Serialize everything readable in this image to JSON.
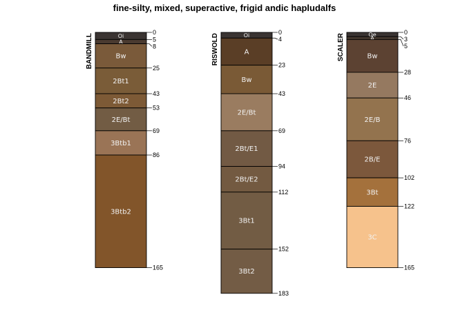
{
  "chart_data": {
    "type": "soil-profile-sketch",
    "title": "fine-silty, mixed, superactive, frigid andic hapludalfs",
    "depth_unit": "cm",
    "depth_range": [
      0,
      183
    ],
    "profiles": [
      {
        "name": "BANDMILL",
        "horizons": [
          {
            "name": "Oi",
            "top": 0,
            "bottom": 5,
            "color": "#3a3432"
          },
          {
            "name": "A",
            "top": 5,
            "bottom": 8,
            "color": "#4a3a30"
          },
          {
            "name": "Bw",
            "top": 8,
            "bottom": 25,
            "color": "#7a5a3a"
          },
          {
            "name": "2Bt1",
            "top": 25,
            "bottom": 43,
            "color": "#7a5c38"
          },
          {
            "name": "2Bt2",
            "top": 43,
            "bottom": 53,
            "color": "#7d5a36"
          },
          {
            "name": "2E/Bt",
            "top": 53,
            "bottom": 69,
            "color": "#725c44"
          },
          {
            "name": "3Btb1",
            "top": 69,
            "bottom": 86,
            "color": "#9a7456"
          },
          {
            "name": "3Btb2",
            "top": 86,
            "bottom": 165,
            "color": "#82552a"
          }
        ],
        "depth_labels": [
          0,
          5,
          8,
          25,
          43,
          53,
          69,
          86,
          165
        ]
      },
      {
        "name": "RISWOLD",
        "horizons": [
          {
            "name": "Oi",
            "top": 0,
            "bottom": 4,
            "color": "#3a3432"
          },
          {
            "name": "A",
            "top": 4,
            "bottom": 23,
            "color": "#5a3e26"
          },
          {
            "name": "Bw",
            "top": 23,
            "bottom": 43,
            "color": "#7a5a36"
          },
          {
            "name": "2E/Bt",
            "top": 43,
            "bottom": 69,
            "color": "#9a7c60"
          },
          {
            "name": "2Bt/E1",
            "top": 69,
            "bottom": 94,
            "color": "#725a44"
          },
          {
            "name": "2Bt/E2",
            "top": 94,
            "bottom": 112,
            "color": "#735a41"
          },
          {
            "name": "3Bt1",
            "top": 112,
            "bottom": 152,
            "color": "#725c44"
          },
          {
            "name": "3Bt2",
            "top": 152,
            "bottom": 183,
            "color": "#735c45"
          }
        ],
        "depth_labels": [
          0,
          4,
          23,
          43,
          69,
          94,
          112,
          152,
          183
        ]
      },
      {
        "name": "SCALER",
        "horizons": [
          {
            "name": "Oe",
            "top": 0,
            "bottom": 3,
            "color": "#3a3432"
          },
          {
            "name": "A",
            "top": 3,
            "bottom": 5,
            "color": "#44382f"
          },
          {
            "name": "Bw",
            "top": 5,
            "bottom": 28,
            "color": "#5c4232"
          },
          {
            "name": "2E",
            "top": 28,
            "bottom": 46,
            "color": "#957960"
          },
          {
            "name": "2E/B",
            "top": 46,
            "bottom": 76,
            "color": "#93734e"
          },
          {
            "name": "2B/E",
            "top": 76,
            "bottom": 102,
            "color": "#7c583c"
          },
          {
            "name": "3Bt",
            "top": 102,
            "bottom": 122,
            "color": "#a4713c"
          },
          {
            "name": "3C",
            "top": 122,
            "bottom": 165,
            "color": "#f6c28c"
          }
        ],
        "depth_labels": [
          0,
          3,
          5,
          28,
          46,
          76,
          102,
          122,
          165
        ]
      }
    ]
  }
}
